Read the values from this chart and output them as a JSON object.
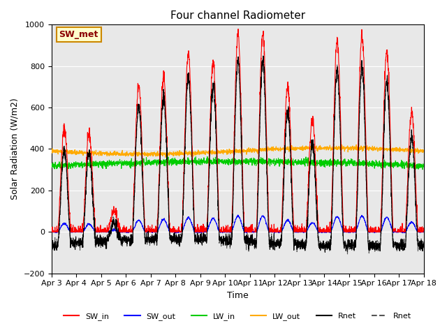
{
  "title": "Four channel Radiometer",
  "ylabel": "Solar Radiation (W/m2)",
  "xlabel": "Time",
  "ylim": [
    -200,
    1000
  ],
  "annotation": "SW_met",
  "bg_color": "#e8e8e8",
  "fig_bg": "#ffffff",
  "legend_entries": [
    "SW_in",
    "SW_out",
    "LW_in",
    "LW_out",
    "Rnet",
    "Rnet"
  ],
  "legend_colors": [
    "#ff0000",
    "#0000ff",
    "#00cc00",
    "#ffaa00",
    "#000000",
    "#555555"
  ],
  "xtick_labels": [
    "Apr 3",
    "Apr 4",
    "Apr 5",
    "Apr 6",
    "Apr 7",
    "Apr 8",
    "Apr 9",
    "Apr 10",
    "Apr 11",
    "Apr 12",
    "Apr 13",
    "Apr 14",
    "Apr 15",
    "Apr 16",
    "Apr 17",
    "Apr 18"
  ],
  "n_days": 15,
  "points_per_day": 144,
  "day_peaks": [
    500,
    470,
    100,
    710,
    750,
    860,
    820,
    950,
    950,
    700,
    540,
    920,
    950,
    870,
    580
  ],
  "yticks": [
    -200,
    0,
    200,
    400,
    600,
    800,
    1000
  ]
}
